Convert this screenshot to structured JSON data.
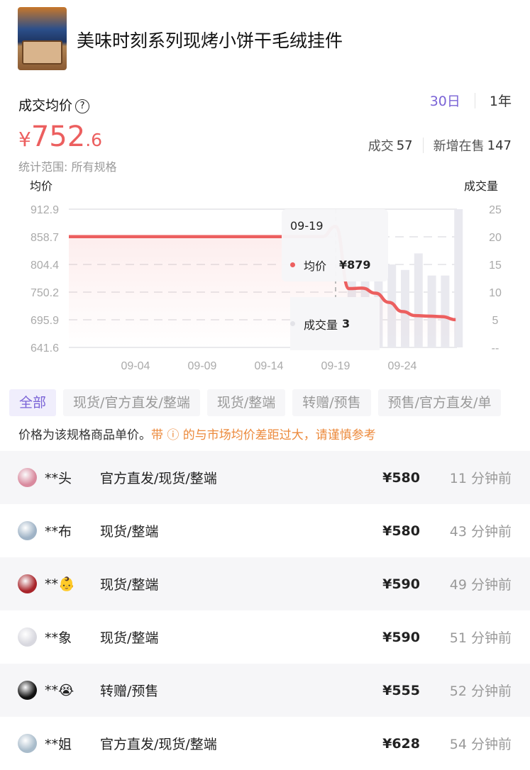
{
  "product": {
    "title": "美味时刻系列现烤小饼干毛绒挂件",
    "thumbnail_icon": "product-thumbnail"
  },
  "summary": {
    "avg_label": "成交均价",
    "help_icon": "?",
    "range_options": [
      "30日",
      "1年"
    ],
    "range_selected": "30日",
    "price_yen": "¥",
    "price_int": "752",
    "price_dec": ".6",
    "deals_label": "成交",
    "deals_value": "57",
    "new_listed_label": "新增在售",
    "new_listed_value": "147",
    "scope": "统计范围: 所有规格"
  },
  "colors": {
    "accent": "#7a63d6",
    "price": "#ec5f5f",
    "warning": "#ec8a3c",
    "bar": "#e9e9ef"
  },
  "chart_data": {
    "type": "line+bar",
    "ylabel_left": "均价",
    "ylabel_right": "成交量",
    "y_left_ticks": [
      "912.9",
      "858.7",
      "804.4",
      "750.2",
      "695.9",
      "641.6"
    ],
    "y_left_range": [
      641.6,
      912.9
    ],
    "y_right_ticks": [
      "25",
      "20",
      "15",
      "10",
      "5",
      "--"
    ],
    "y_right_range": [
      0,
      25
    ],
    "x_ticks": [
      "09-04",
      "09-09",
      "09-14",
      "09-19",
      "09-24"
    ],
    "x_range": [
      "08-30",
      "09-28"
    ],
    "grid": "dashed horizontal",
    "price_series": {
      "name": "均价",
      "points": [
        [
          "08-30",
          859
        ],
        [
          "09-18",
          859
        ],
        [
          "09-19",
          879
        ],
        [
          "09-20",
          757
        ],
        [
          "09-21",
          758
        ],
        [
          "09-22",
          748
        ],
        [
          "09-23",
          730
        ],
        [
          "09-24",
          712
        ],
        [
          "09-25",
          704
        ],
        [
          "09-26",
          703
        ],
        [
          "09-27",
          702
        ],
        [
          "09-28",
          696
        ]
      ]
    },
    "volume_series": {
      "name": "成交量",
      "points": [
        [
          "09-19",
          3
        ],
        [
          "09-20",
          12
        ],
        [
          "09-21",
          12
        ],
        [
          "09-22",
          12
        ],
        [
          "09-23",
          15
        ],
        [
          "09-24",
          14
        ],
        [
          "09-25",
          17
        ],
        [
          "09-26",
          13
        ],
        [
          "09-27",
          13
        ],
        [
          "09-28",
          25
        ]
      ]
    },
    "tooltip": {
      "date": "09-19",
      "price_label": "均价",
      "price_value": "¥879",
      "volume_label": "成交量",
      "volume_value": "3"
    }
  },
  "filters": [
    "全部",
    "现货/官方直发/整端",
    "现货/整端",
    "转赠/预售",
    "预售/官方直发/单"
  ],
  "filter_selected": "全部",
  "note": {
    "text": "价格为该规格商品单价。",
    "warning": "带 ⓘ 的与市场均价差距过大，请谨慎参考"
  },
  "records": [
    {
      "name": "**头",
      "spec": "官方直发/现货/整端",
      "price": "¥580",
      "time": "11 分钟前",
      "avatar": "#d98a9e"
    },
    {
      "name": "**布",
      "spec": "现货/整端",
      "price": "¥580",
      "time": "43 分钟前",
      "avatar": "#9fb3c6"
    },
    {
      "name": "**👶",
      "spec": "现货/整端",
      "price": "¥590",
      "time": "49 分钟前",
      "avatar": "#a8242a"
    },
    {
      "name": "**象",
      "spec": "现货/整端",
      "price": "¥590",
      "time": "51 分钟前",
      "avatar": "#d8d8df"
    },
    {
      "name": "**😭",
      "spec": "转赠/预售",
      "price": "¥555",
      "time": "52 分钟前",
      "avatar": "#111"
    },
    {
      "name": "**姐",
      "spec": "官方直发/现货/整端",
      "price": "¥628",
      "time": "54 分钟前",
      "avatar": "#a9bccb"
    }
  ]
}
